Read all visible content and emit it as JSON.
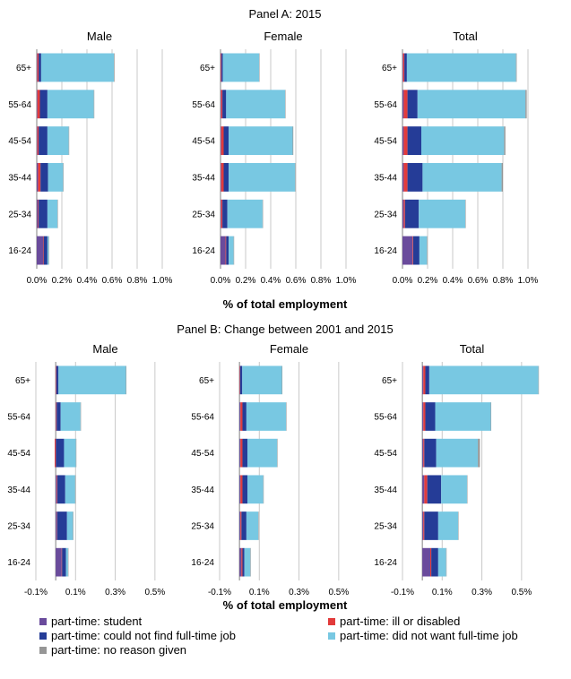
{
  "panel_a_title": "Panel A: 2015",
  "panel_b_title": "Panel B: Change between 2001 and 2015",
  "xlabel": "% of total employment",
  "legend": [
    {
      "label": "part-time: student",
      "color": "#6A4B9C"
    },
    {
      "label": "part-time: could not find full-time job",
      "color": "#253C97"
    },
    {
      "label": "part-time: no reason given",
      "color": "#969696"
    },
    {
      "label": "part-time: ill or disabled",
      "color": "#E23B3B"
    },
    {
      "label": "part-time: did not want full-time job",
      "color": "#78C8E2"
    }
  ],
  "chart_data": [
    {
      "type": "bar",
      "orientation": "horizontal",
      "stacked": true,
      "panel": "Panel A: 2015",
      "title": "Male",
      "categories": [
        "65+",
        "55-64",
        "45-54",
        "35-44",
        "25-34",
        "16-24"
      ],
      "xlim": [
        0,
        1.0
      ],
      "ticks": [
        "0.0%",
        "0.2%",
        "0.4%",
        "0.6%",
        "0.8%",
        "1.0%"
      ],
      "tick_values": [
        0,
        0.2,
        0.4,
        0.6,
        0.8,
        1.0
      ],
      "series": [
        {
          "name": "part-time: student",
          "values": [
            0.005,
            0.005,
            0.005,
            0.01,
            0.01,
            0.05
          ]
        },
        {
          "name": "part-time: ill or disabled",
          "values": [
            0.01,
            0.02,
            0.01,
            0.02,
            0.005,
            0.005
          ]
        },
        {
          "name": "part-time: could not find full-time job",
          "values": [
            0.02,
            0.06,
            0.07,
            0.06,
            0.07,
            0.03
          ]
        },
        {
          "name": "part-time: did not want full-time job",
          "values": [
            0.58,
            0.37,
            0.17,
            0.12,
            0.08,
            0.01
          ]
        },
        {
          "name": "part-time: no reason given",
          "values": [
            0.005,
            0.002,
            0.002,
            0.002,
            0.002,
            0.001
          ]
        }
      ]
    },
    {
      "type": "bar",
      "orientation": "horizontal",
      "stacked": true,
      "panel": "Panel A: 2015",
      "title": "Female",
      "categories": [
        "65+",
        "55-64",
        "45-54",
        "35-44",
        "25-34",
        "16-24"
      ],
      "xlim": [
        0,
        1.0
      ],
      "ticks": [
        "0.0%",
        "0.2%",
        "0.4%",
        "0.6%",
        "0.8%",
        "1.0%"
      ],
      "tick_values": [
        0,
        0.2,
        0.4,
        0.6,
        0.8,
        1.0
      ],
      "series": [
        {
          "name": "part-time: student",
          "values": [
            0.003,
            0.005,
            0.005,
            0.005,
            0.005,
            0.04
          ]
        },
        {
          "name": "part-time: ill or disabled",
          "values": [
            0.005,
            0.01,
            0.02,
            0.02,
            0.01,
            0.005
          ]
        },
        {
          "name": "part-time: could not find full-time job",
          "values": [
            0.01,
            0.03,
            0.04,
            0.04,
            0.04,
            0.02
          ]
        },
        {
          "name": "part-time: did not want full-time job",
          "values": [
            0.29,
            0.47,
            0.51,
            0.53,
            0.28,
            0.04
          ]
        },
        {
          "name": "part-time: no reason given",
          "values": [
            0.002,
            0.003,
            0.005,
            0.003,
            0.002,
            0.001
          ]
        }
      ]
    },
    {
      "type": "bar",
      "orientation": "horizontal",
      "stacked": true,
      "panel": "Panel A: 2015",
      "title": "Total",
      "categories": [
        "65+",
        "55-64",
        "45-54",
        "35-44",
        "25-34",
        "16-24"
      ],
      "xlim": [
        0,
        1.0
      ],
      "ticks": [
        "0.0%",
        "0.2%",
        "0.4%",
        "0.6%",
        "0.8%",
        "1.0%"
      ],
      "tick_values": [
        0,
        0.2,
        0.4,
        0.6,
        0.8,
        1.0
      ],
      "series": [
        {
          "name": "part-time: student",
          "values": [
            0.005,
            0.01,
            0.01,
            0.01,
            0.01,
            0.08
          ]
        },
        {
          "name": "part-time: ill or disabled",
          "values": [
            0.01,
            0.03,
            0.03,
            0.03,
            0.01,
            0.005
          ]
        },
        {
          "name": "part-time: could not find full-time job",
          "values": [
            0.02,
            0.08,
            0.11,
            0.12,
            0.11,
            0.05
          ]
        },
        {
          "name": "part-time: did not want full-time job",
          "values": [
            0.87,
            0.86,
            0.66,
            0.63,
            0.37,
            0.06
          ]
        },
        {
          "name": "part-time: no reason given",
          "values": [
            0.005,
            0.01,
            0.01,
            0.01,
            0.002,
            0.002
          ]
        }
      ]
    },
    {
      "type": "bar",
      "orientation": "horizontal",
      "stacked": true,
      "panel": "Panel B: Change between 2001 and 2015",
      "title": "Male",
      "categories": [
        "65+",
        "55-64",
        "45-54",
        "35-44",
        "25-34",
        "16-24"
      ],
      "xlim": [
        -0.1,
        0.6
      ],
      "ticks": [
        "-0.1%",
        "0.1%",
        "0.3%",
        "0.5%"
      ],
      "tick_values": [
        -0.1,
        0.1,
        0.3,
        0.5
      ],
      "series": [
        {
          "name": "part-time: student",
          "values": [
            0.002,
            0.002,
            0.002,
            0.005,
            0.005,
            0.03
          ]
        },
        {
          "name": "part-time: ill or disabled",
          "values": [
            0.002,
            0.003,
            -0.005,
            0.003,
            0.002,
            0.002
          ]
        },
        {
          "name": "part-time: could not find full-time job",
          "values": [
            0.01,
            0.02,
            0.04,
            0.04,
            0.05,
            0.02
          ]
        },
        {
          "name": "part-time: did not want full-time job",
          "values": [
            0.34,
            0.1,
            0.06,
            0.05,
            0.03,
            0.01
          ]
        },
        {
          "name": "part-time: no reason given",
          "values": [
            0.001,
            0.001,
            0.001,
            0.001,
            0.001,
            0.001
          ]
        }
      ]
    },
    {
      "type": "bar",
      "orientation": "horizontal",
      "stacked": true,
      "panel": "Panel B: Change between 2001 and 2015",
      "title": "Female",
      "categories": [
        "65+",
        "55-64",
        "45-54",
        "35-44",
        "25-34",
        "16-24"
      ],
      "xlim": [
        -0.1,
        0.6
      ],
      "ticks": [
        "-0.1%",
        "0.1%",
        "0.3%",
        "0.5%"
      ],
      "tick_values": [
        -0.1,
        0.1,
        0.3,
        0.5
      ],
      "series": [
        {
          "name": "part-time: student",
          "values": [
            0.002,
            0.005,
            0.005,
            0.005,
            0.005,
            0.01
          ]
        },
        {
          "name": "part-time: ill or disabled",
          "values": [
            0.002,
            0.01,
            0.01,
            0.01,
            0.005,
            0.005
          ]
        },
        {
          "name": "part-time: could not find full-time job",
          "values": [
            0.01,
            0.02,
            0.025,
            0.025,
            0.025,
            0.01
          ]
        },
        {
          "name": "part-time: did not want full-time job",
          "values": [
            0.2,
            0.2,
            0.15,
            0.08,
            0.06,
            0.03
          ]
        },
        {
          "name": "part-time: no reason given",
          "values": [
            0.001,
            0.001,
            0.001,
            0.001,
            0.001,
            0.001
          ]
        }
      ]
    },
    {
      "type": "bar",
      "orientation": "horizontal",
      "stacked": true,
      "panel": "Panel B: Change between 2001 and 2015",
      "title": "Total",
      "categories": [
        "65+",
        "55-64",
        "45-54",
        "35-44",
        "25-34",
        "16-24"
      ],
      "xlim": [
        -0.1,
        0.6
      ],
      "ticks": [
        "-0.1%",
        "0.1%",
        "0.3%",
        "0.5%"
      ],
      "tick_values": [
        -0.1,
        0.1,
        0.3,
        0.5
      ],
      "series": [
        {
          "name": "part-time: student",
          "values": [
            0.005,
            0.005,
            0.005,
            0.01,
            0.005,
            0.04
          ]
        },
        {
          "name": "part-time: ill or disabled",
          "values": [
            0.01,
            0.01,
            0.005,
            0.015,
            0.005,
            0.005
          ]
        },
        {
          "name": "part-time: could not find full-time job",
          "values": [
            0.02,
            0.05,
            0.06,
            0.07,
            0.07,
            0.035
          ]
        },
        {
          "name": "part-time: did not want full-time job",
          "values": [
            0.55,
            0.28,
            0.21,
            0.13,
            0.1,
            0.04
          ]
        },
        {
          "name": "part-time: no reason given",
          "values": [
            0.001,
            0.001,
            0.01,
            0.001,
            0.001,
            0.001
          ]
        }
      ]
    }
  ]
}
